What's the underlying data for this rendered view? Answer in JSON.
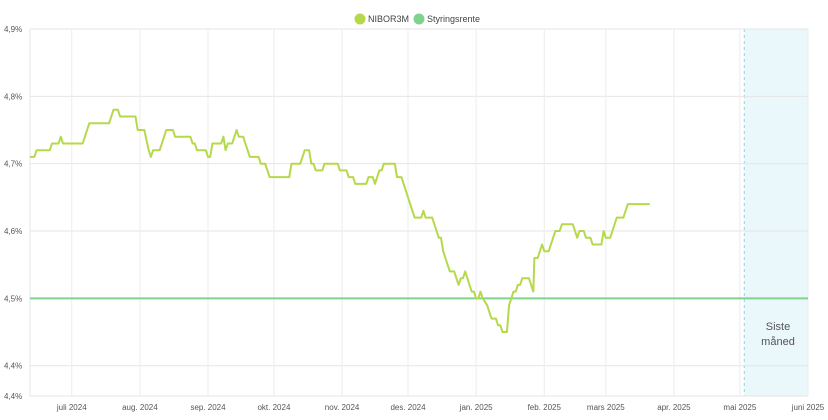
{
  "chart_data": {
    "type": "line",
    "legend": {
      "placement": "top-center",
      "items": [
        {
          "label": "NIBOR3M",
          "color": "#b5d94a"
        },
        {
          "label": "Styringsrente",
          "color": "#7fd38e"
        }
      ]
    },
    "y_axis": {
      "ticks": [
        "4,4%",
        "4,4%",
        "4,5%",
        "4,6%",
        "4,7%",
        "4,8%",
        "4,9%"
      ],
      "tick_values": [
        4.355,
        4.4,
        4.5,
        4.6,
        4.7,
        4.8,
        4.9
      ],
      "range": [
        4.355,
        4.9
      ]
    },
    "x_axis": {
      "ticks": [
        "juli 2024",
        "aug. 2024",
        "sep. 2024",
        "okt. 2024",
        "nov. 2024",
        "des. 2024",
        "jan. 2025",
        "feb. 2025",
        "mars 2025",
        "apr. 2025",
        "mai 2025",
        "juni 2025"
      ],
      "tick_days": [
        19,
        50,
        81,
        111,
        142,
        172,
        203,
        234,
        262,
        293,
        323,
        354
      ],
      "range_days": [
        0,
        354
      ]
    },
    "grid": true,
    "annotation": {
      "lines": [
        "Siste",
        "måned"
      ],
      "band_start_day": 325,
      "band_end_day": 354,
      "color": "#eaf7fb"
    },
    "series": [
      {
        "name": "NIBOR3M",
        "color": "#b5d94a",
        "points": [
          [
            0,
            4.71
          ],
          [
            2,
            4.71
          ],
          [
            3,
            4.72
          ],
          [
            9,
            4.72
          ],
          [
            10,
            4.73
          ],
          [
            13,
            4.73
          ],
          [
            14,
            4.74
          ],
          [
            15,
            4.73
          ],
          [
            24,
            4.73
          ],
          [
            25,
            4.74
          ],
          [
            26,
            4.75
          ],
          [
            27,
            4.76
          ],
          [
            36,
            4.76
          ],
          [
            37,
            4.77
          ],
          [
            38,
            4.78
          ],
          [
            40,
            4.78
          ],
          [
            41,
            4.77
          ],
          [
            48,
            4.77
          ],
          [
            49,
            4.75
          ],
          [
            52,
            4.75
          ],
          [
            54,
            4.72
          ],
          [
            55,
            4.71
          ],
          [
            56,
            4.72
          ],
          [
            59,
            4.72
          ],
          [
            61,
            4.74
          ],
          [
            62,
            4.75
          ],
          [
            65,
            4.75
          ],
          [
            66,
            4.74
          ],
          [
            73,
            4.74
          ],
          [
            74,
            4.73
          ],
          [
            75,
            4.73
          ],
          [
            76,
            4.72
          ],
          [
            80,
            4.72
          ],
          [
            81,
            4.71
          ],
          [
            82,
            4.71
          ],
          [
            83,
            4.73
          ],
          [
            87,
            4.73
          ],
          [
            88,
            4.74
          ],
          [
            89,
            4.72
          ],
          [
            90,
            4.73
          ],
          [
            92,
            4.73
          ],
          [
            93,
            4.74
          ],
          [
            94,
            4.75
          ],
          [
            95,
            4.74
          ],
          [
            97,
            4.74
          ],
          [
            98,
            4.73
          ],
          [
            99,
            4.72
          ],
          [
            100,
            4.71
          ],
          [
            104,
            4.71
          ],
          [
            105,
            4.7
          ],
          [
            107,
            4.7
          ],
          [
            108,
            4.69
          ],
          [
            109,
            4.68
          ],
          [
            118,
            4.68
          ],
          [
            119,
            4.7
          ],
          [
            123,
            4.7
          ],
          [
            124,
            4.71
          ],
          [
            125,
            4.72
          ],
          [
            127,
            4.72
          ],
          [
            128,
            4.7
          ],
          [
            129,
            4.7
          ],
          [
            130,
            4.69
          ],
          [
            133,
            4.69
          ],
          [
            134,
            4.7
          ],
          [
            140,
            4.7
          ],
          [
            141,
            4.69
          ],
          [
            144,
            4.69
          ],
          [
            145,
            4.68
          ],
          [
            147,
            4.68
          ],
          [
            148,
            4.67
          ],
          [
            153,
            4.67
          ],
          [
            154,
            4.68
          ],
          [
            156,
            4.68
          ],
          [
            157,
            4.67
          ],
          [
            158,
            4.68
          ],
          [
            159,
            4.69
          ],
          [
            160,
            4.69
          ],
          [
            161,
            4.7
          ],
          [
            166,
            4.7
          ],
          [
            167,
            4.68
          ],
          [
            169,
            4.68
          ],
          [
            170,
            4.67
          ],
          [
            171,
            4.66
          ],
          [
            172,
            4.65
          ],
          [
            173,
            4.64
          ],
          [
            175,
            4.62
          ],
          [
            178,
            4.62
          ],
          [
            179,
            4.63
          ],
          [
            180,
            4.62
          ],
          [
            183,
            4.62
          ],
          [
            184,
            4.61
          ],
          [
            185,
            4.6
          ],
          [
            186,
            4.59
          ],
          [
            187,
            4.59
          ],
          [
            188,
            4.57
          ],
          [
            189,
            4.56
          ],
          [
            190,
            4.55
          ],
          [
            191,
            4.54
          ],
          [
            193,
            4.54
          ],
          [
            194,
            4.53
          ],
          [
            195,
            4.52
          ],
          [
            196,
            4.53
          ],
          [
            197,
            4.53
          ],
          [
            198,
            4.54
          ],
          [
            199,
            4.53
          ],
          [
            200,
            4.52
          ],
          [
            201,
            4.51
          ],
          [
            202,
            4.51
          ],
          [
            203,
            4.5
          ],
          [
            204,
            4.5
          ],
          [
            205,
            4.51
          ],
          [
            206,
            4.5
          ],
          [
            208,
            4.49
          ],
          [
            209,
            4.48
          ],
          [
            210,
            4.47
          ],
          [
            212,
            4.47
          ],
          [
            213,
            4.46
          ],
          [
            214,
            4.46
          ],
          [
            215,
            4.45
          ],
          [
            217,
            4.45
          ],
          [
            218,
            4.49
          ],
          [
            219,
            4.5
          ],
          [
            220,
            4.51
          ],
          [
            221,
            4.51
          ],
          [
            222,
            4.52
          ],
          [
            223,
            4.52
          ],
          [
            224,
            4.53
          ],
          [
            227,
            4.53
          ],
          [
            228,
            4.52
          ],
          [
            229,
            4.51
          ],
          [
            229.5,
            4.56
          ],
          [
            231,
            4.56
          ],
          [
            232,
            4.57
          ],
          [
            233,
            4.58
          ],
          [
            234,
            4.57
          ],
          [
            236,
            4.57
          ],
          [
            237,
            4.58
          ],
          [
            238,
            4.59
          ],
          [
            239,
            4.6
          ],
          [
            241,
            4.6
          ],
          [
            242,
            4.61
          ],
          [
            247,
            4.61
          ],
          [
            248,
            4.6
          ],
          [
            249,
            4.59
          ],
          [
            250,
            4.6
          ],
          [
            252,
            4.6
          ],
          [
            253,
            4.59
          ],
          [
            255,
            4.59
          ],
          [
            256,
            4.58
          ],
          [
            260,
            4.58
          ],
          [
            261,
            4.6
          ],
          [
            262,
            4.59
          ],
          [
            264,
            4.59
          ],
          [
            266,
            4.61
          ],
          [
            267,
            4.62
          ],
          [
            270,
            4.62
          ],
          [
            271,
            4.63
          ],
          [
            272,
            4.64
          ],
          [
            282,
            4.64
          ]
        ]
      },
      {
        "name": "Styringsrente",
        "color": "#7fd38e",
        "points": [
          [
            0,
            4.5
          ],
          [
            354,
            4.5
          ]
        ]
      }
    ]
  }
}
